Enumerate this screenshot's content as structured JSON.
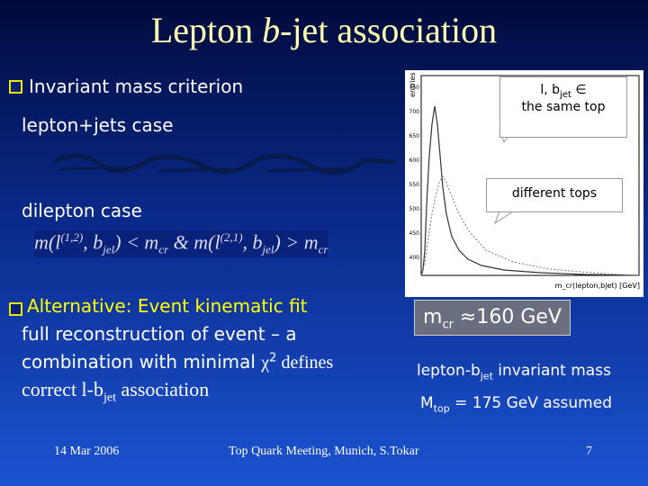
{
  "title": {
    "pre": "Lepton ",
    "italic": "b",
    "post": "-jet association"
  },
  "bullet1": {
    "text": "Invariant mass criterion",
    "case1": "lepton+jets case",
    "case2": "dilepton case"
  },
  "formula": {
    "m1": "m(l",
    "sup1": "(1,2)",
    "b1": ", b",
    "sub1": "jel",
    "rel1": ") < m",
    "cr1": "cr",
    "amp": " & ",
    "m2": "m(l",
    "sup2": "(2,1)",
    "b2": ", b",
    "sub2": "jel",
    "rel2": ") > m",
    "cr2": "cr"
  },
  "bullet2": {
    "highlight": "Alternative:  Event kinematic fit",
    "line2": "full reconstruction of event – a",
    "line3a": "combination with minimal  ",
    "chi": "χ",
    "sq": "2",
    "line3b": "  defines",
    "line4a": "correct l-b",
    "line4sub": "jet",
    "line4b": " association"
  },
  "plot": {
    "ylabel": "entries",
    "xlabel": "m_cr(lepton,bjet) [GeV]",
    "yticks": [
      "750",
      "700",
      "650",
      "600",
      "550",
      "500",
      "450",
      "400"
    ]
  },
  "callout_same": {
    "a": "l, b",
    "sub": "jet",
    "b": " ∈",
    "line2": "the same top"
  },
  "callout_diff": "different tops",
  "mcr_box": {
    "m": "m",
    "sub": "cr",
    "rest": " ≈160 GeV"
  },
  "note1": {
    "a": "lepton-b",
    "sub": "jet",
    "b": " invariant mass"
  },
  "note2": {
    "a": "M",
    "sub": "top",
    "b": " = 175 GeV assumed"
  },
  "footer": {
    "date": "14 Mar 2006",
    "meeting": "Top Quark Meeting, Munich, S.Tokar",
    "page": "7"
  }
}
